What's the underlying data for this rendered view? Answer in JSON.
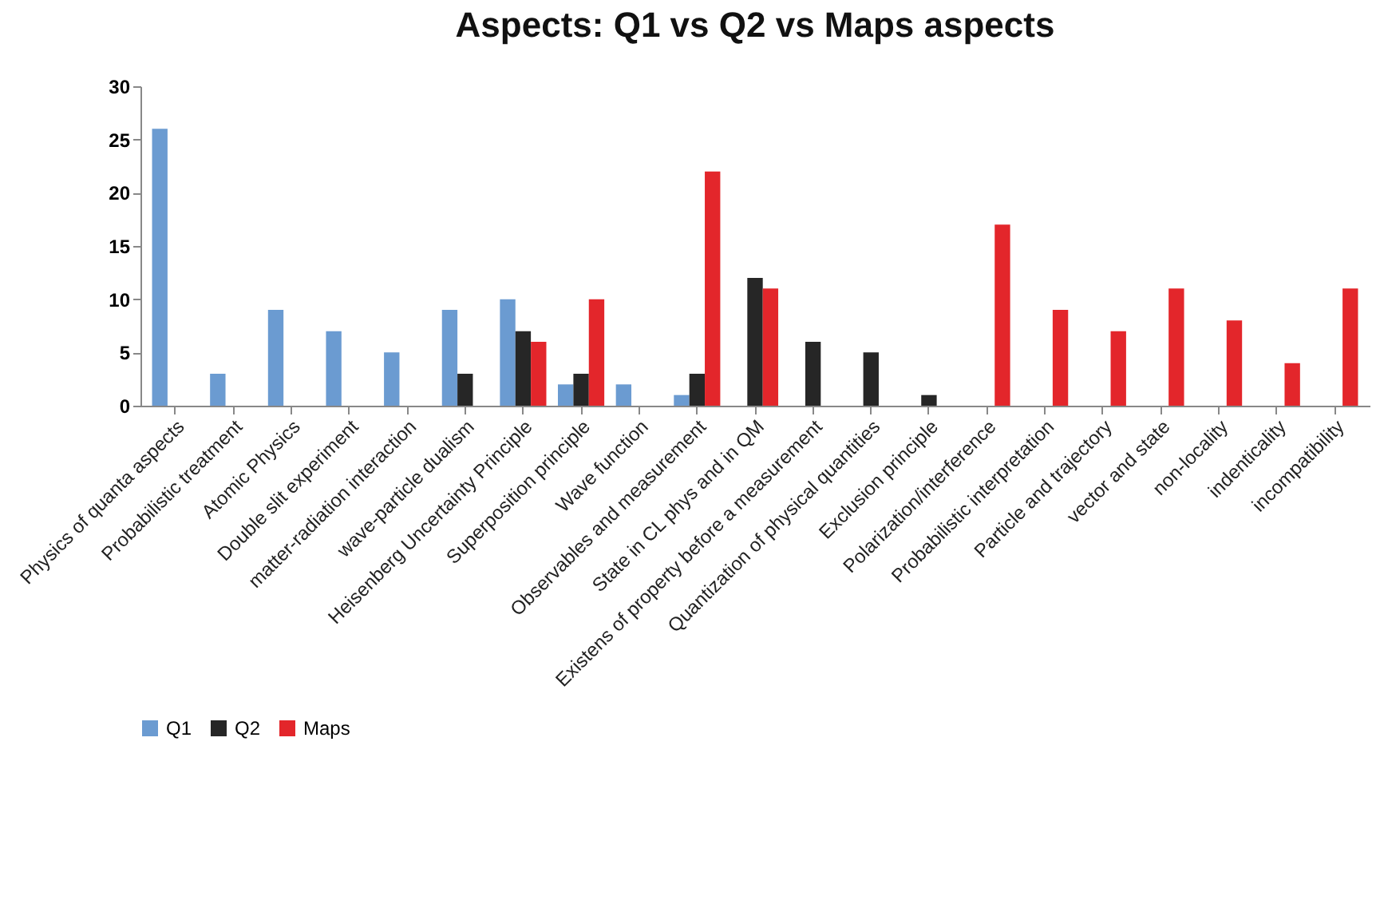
{
  "chart_data": {
    "type": "bar",
    "title": "Aspects: Q1 vs Q2 vs Maps aspects",
    "categories": [
      "Physics of quanta aspects",
      "Probabilistic treatment",
      "Atomic Physics",
      "Double slit experiment",
      "matter-radiation interaction",
      "wave-particle dualism",
      "Heisenberg Uncertainty Principle",
      "Superposition principle",
      "Wave function",
      "Observables and measurement",
      "State in CL phys and in QM",
      "Existens of property before a measurement",
      "Quantization of physical quantities",
      "Exclusion principle",
      "Polarization/interference",
      "Probabilistic interpretation",
      "Particle and trajectory",
      "vector and state",
      "non-locality",
      "indenticality",
      "incompatibility"
    ],
    "series": [
      {
        "name": "Q1",
        "color": "#6b9bd1",
        "values": [
          26,
          3,
          9,
          7,
          5,
          9,
          10,
          2,
          2,
          1,
          null,
          null,
          null,
          null,
          null,
          null,
          null,
          null,
          null,
          null,
          null
        ]
      },
      {
        "name": "Q2",
        "color": "#262626",
        "values": [
          null,
          null,
          null,
          null,
          null,
          3,
          7,
          3,
          null,
          3,
          12,
          6,
          5,
          1,
          null,
          null,
          null,
          null,
          null,
          null,
          null
        ]
      },
      {
        "name": "Maps",
        "color": "#e3262b",
        "values": [
          null,
          null,
          null,
          null,
          null,
          null,
          6,
          10,
          null,
          22,
          11,
          null,
          null,
          null,
          17,
          9,
          7,
          11,
          8,
          4,
          11
        ]
      }
    ],
    "ylim": [
      0,
      30
    ],
    "yticks": [
      0,
      5,
      10,
      15,
      20,
      25,
      30
    ],
    "grid": false,
    "legend": "bottom"
  }
}
